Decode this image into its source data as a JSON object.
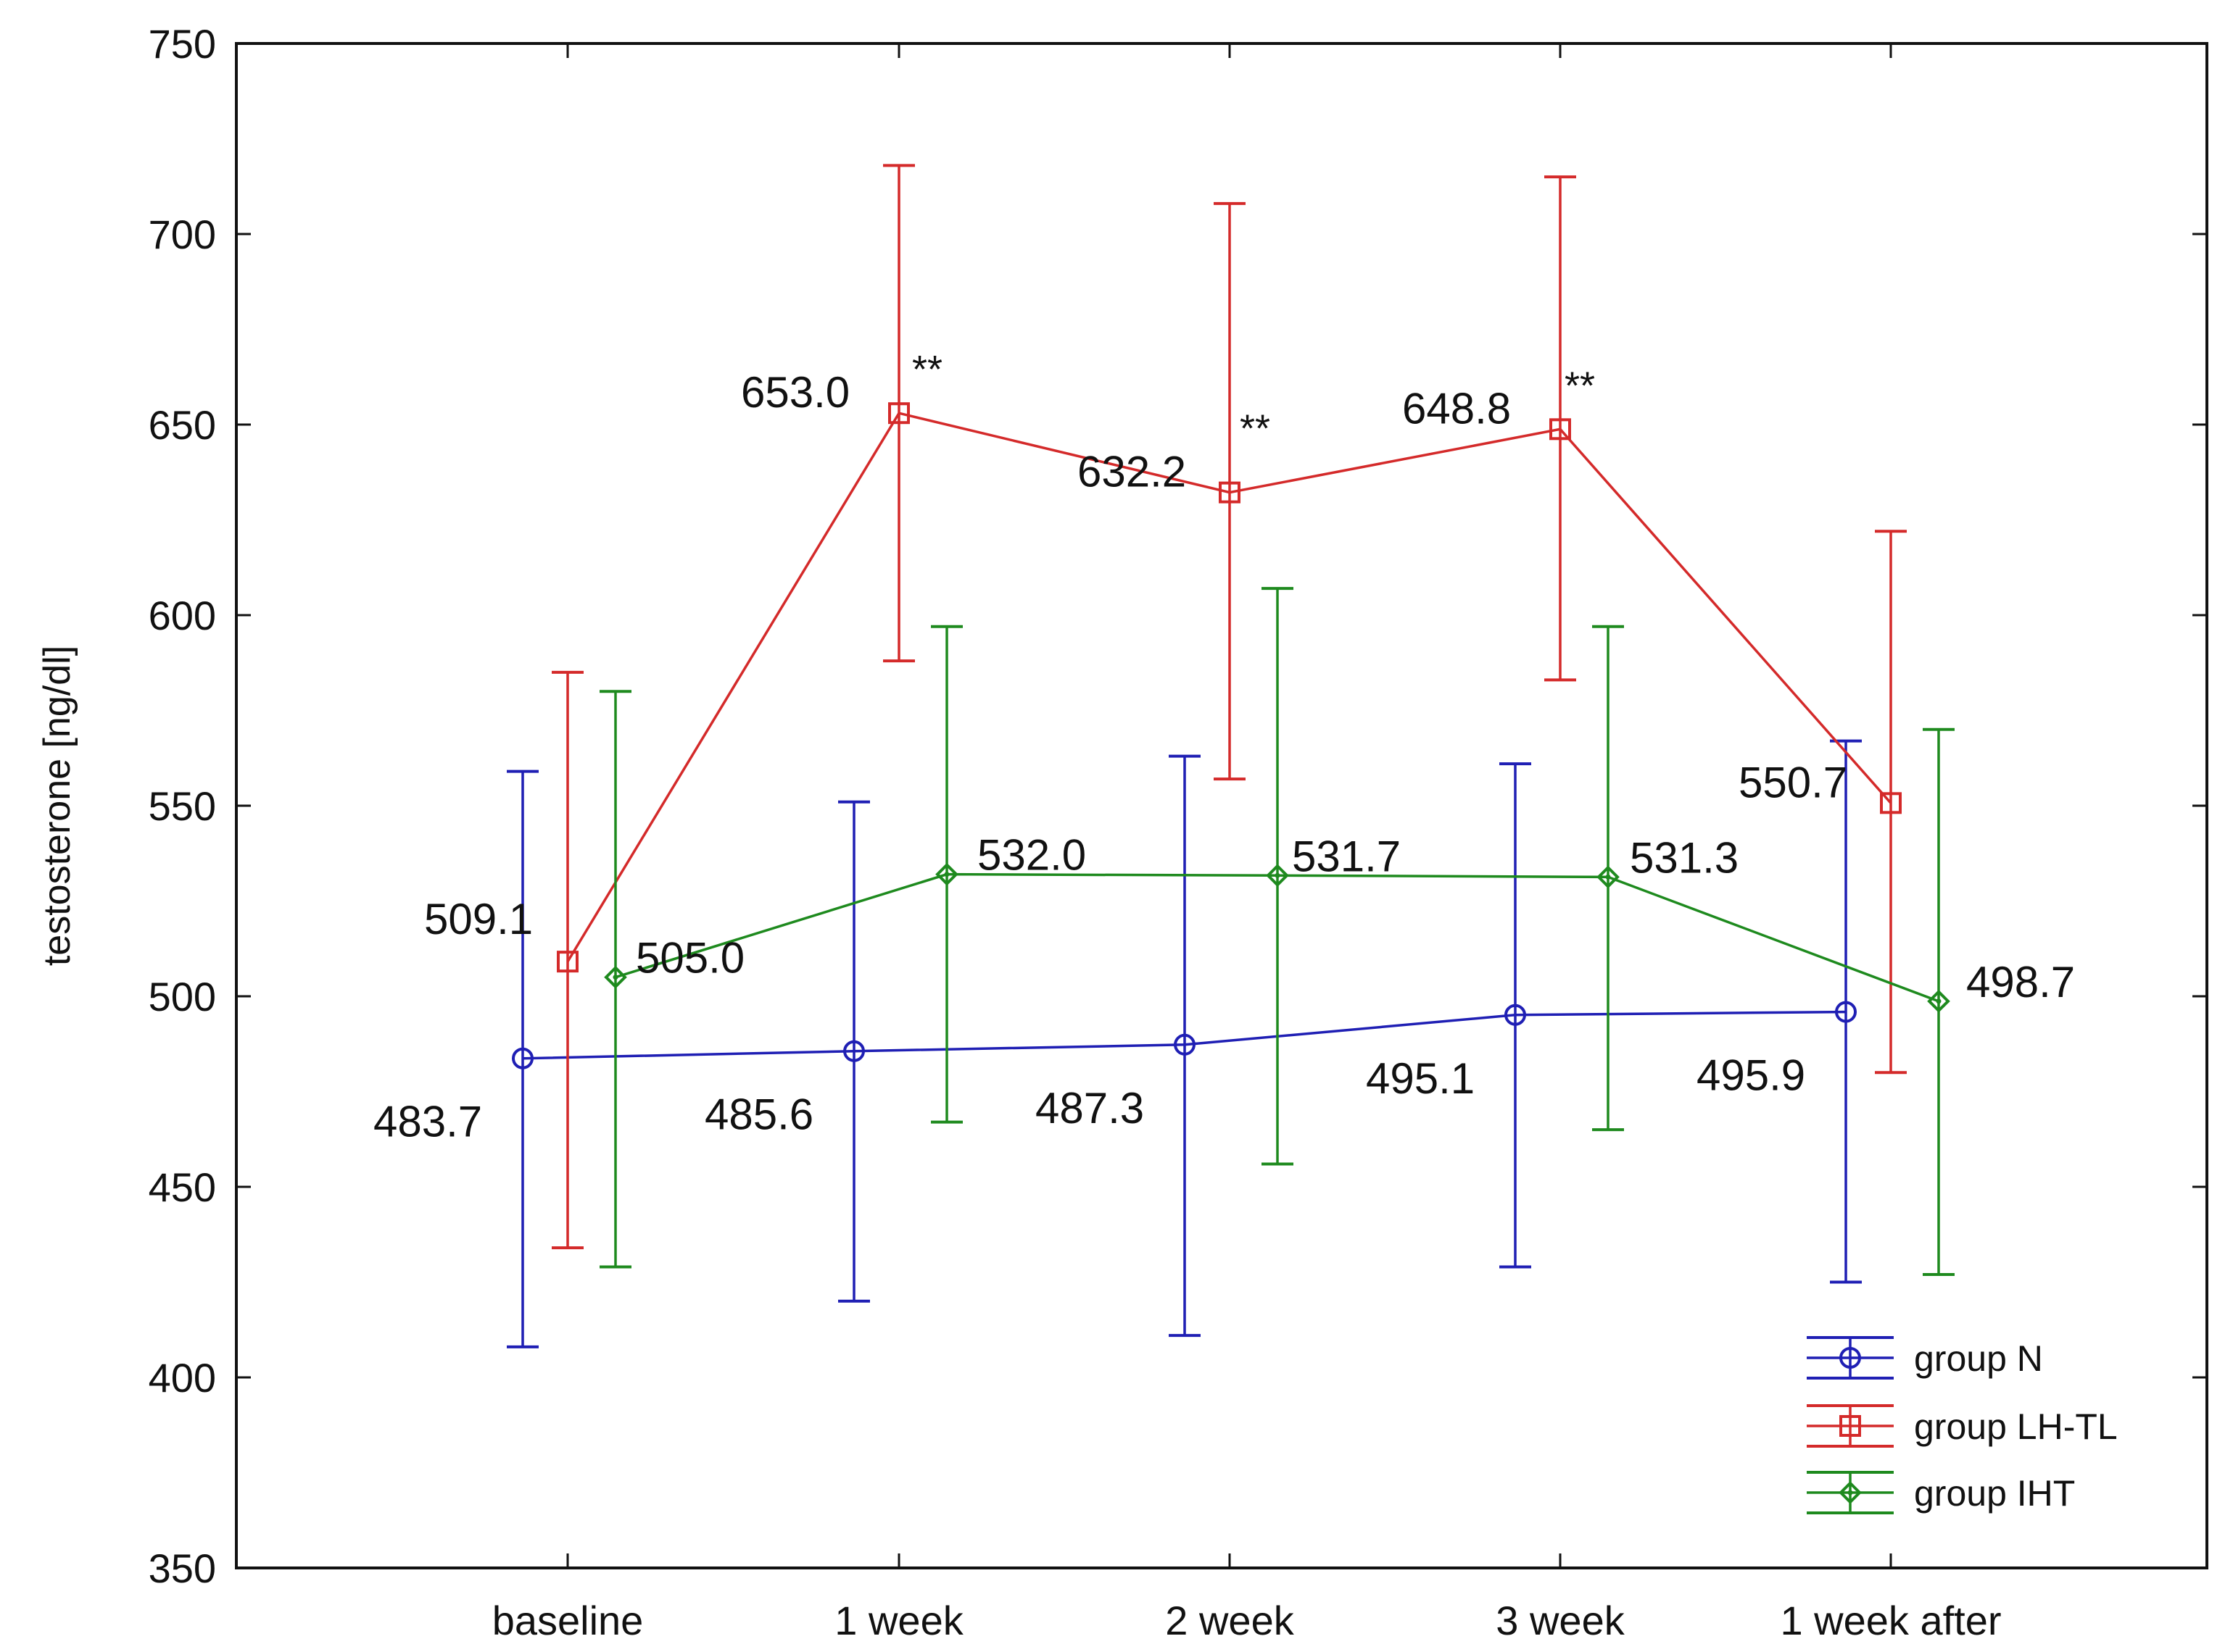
{
  "chart_data": {
    "type": "line",
    "title": "",
    "xlabel": "",
    "ylabel": "testosterone [ng/dl]",
    "ylim": [
      350,
      750
    ],
    "yticks": [
      350,
      400,
      450,
      500,
      550,
      600,
      650,
      700,
      750
    ],
    "categories": [
      "baseline",
      "1 week",
      "2 week",
      "3 week",
      "1 week after"
    ],
    "grid": false,
    "legend_position": "bottom-right",
    "series": [
      {
        "name": "group N",
        "color": "#1f1fb4",
        "marker": "circle",
        "values": [
          483.7,
          485.6,
          487.3,
          495.1,
          495.9
        ],
        "err_low": [
          408,
          420,
          411,
          429,
          425
        ],
        "err_high": [
          559,
          551,
          563,
          561,
          567
        ],
        "value_labels": [
          "483.7",
          "485.6",
          "487.3",
          "495.1",
          "495.9"
        ]
      },
      {
        "name": "group LH-TL",
        "color": "#d42a2a",
        "marker": "square",
        "values": [
          509.1,
          653.0,
          632.2,
          648.8,
          550.7
        ],
        "err_low": [
          434,
          588,
          557,
          583,
          480
        ],
        "err_high": [
          585,
          718,
          708,
          715,
          622
        ],
        "value_labels": [
          "509.1",
          "653.0",
          "632.2",
          "648.8",
          "550.7"
        ],
        "significance": [
          "",
          "**",
          "**",
          "**",
          ""
        ]
      },
      {
        "name": "group IHT",
        "color": "#1e8a1e",
        "marker": "diamond",
        "values": [
          505.0,
          532.0,
          531.7,
          531.3,
          498.7
        ],
        "err_low": [
          429,
          467,
          456,
          465,
          427
        ],
        "err_high": [
          580,
          597,
          607,
          597,
          570
        ],
        "value_labels": [
          "505.0",
          "532.0",
          "531.7",
          "531.3",
          "498.7"
        ]
      }
    ]
  }
}
